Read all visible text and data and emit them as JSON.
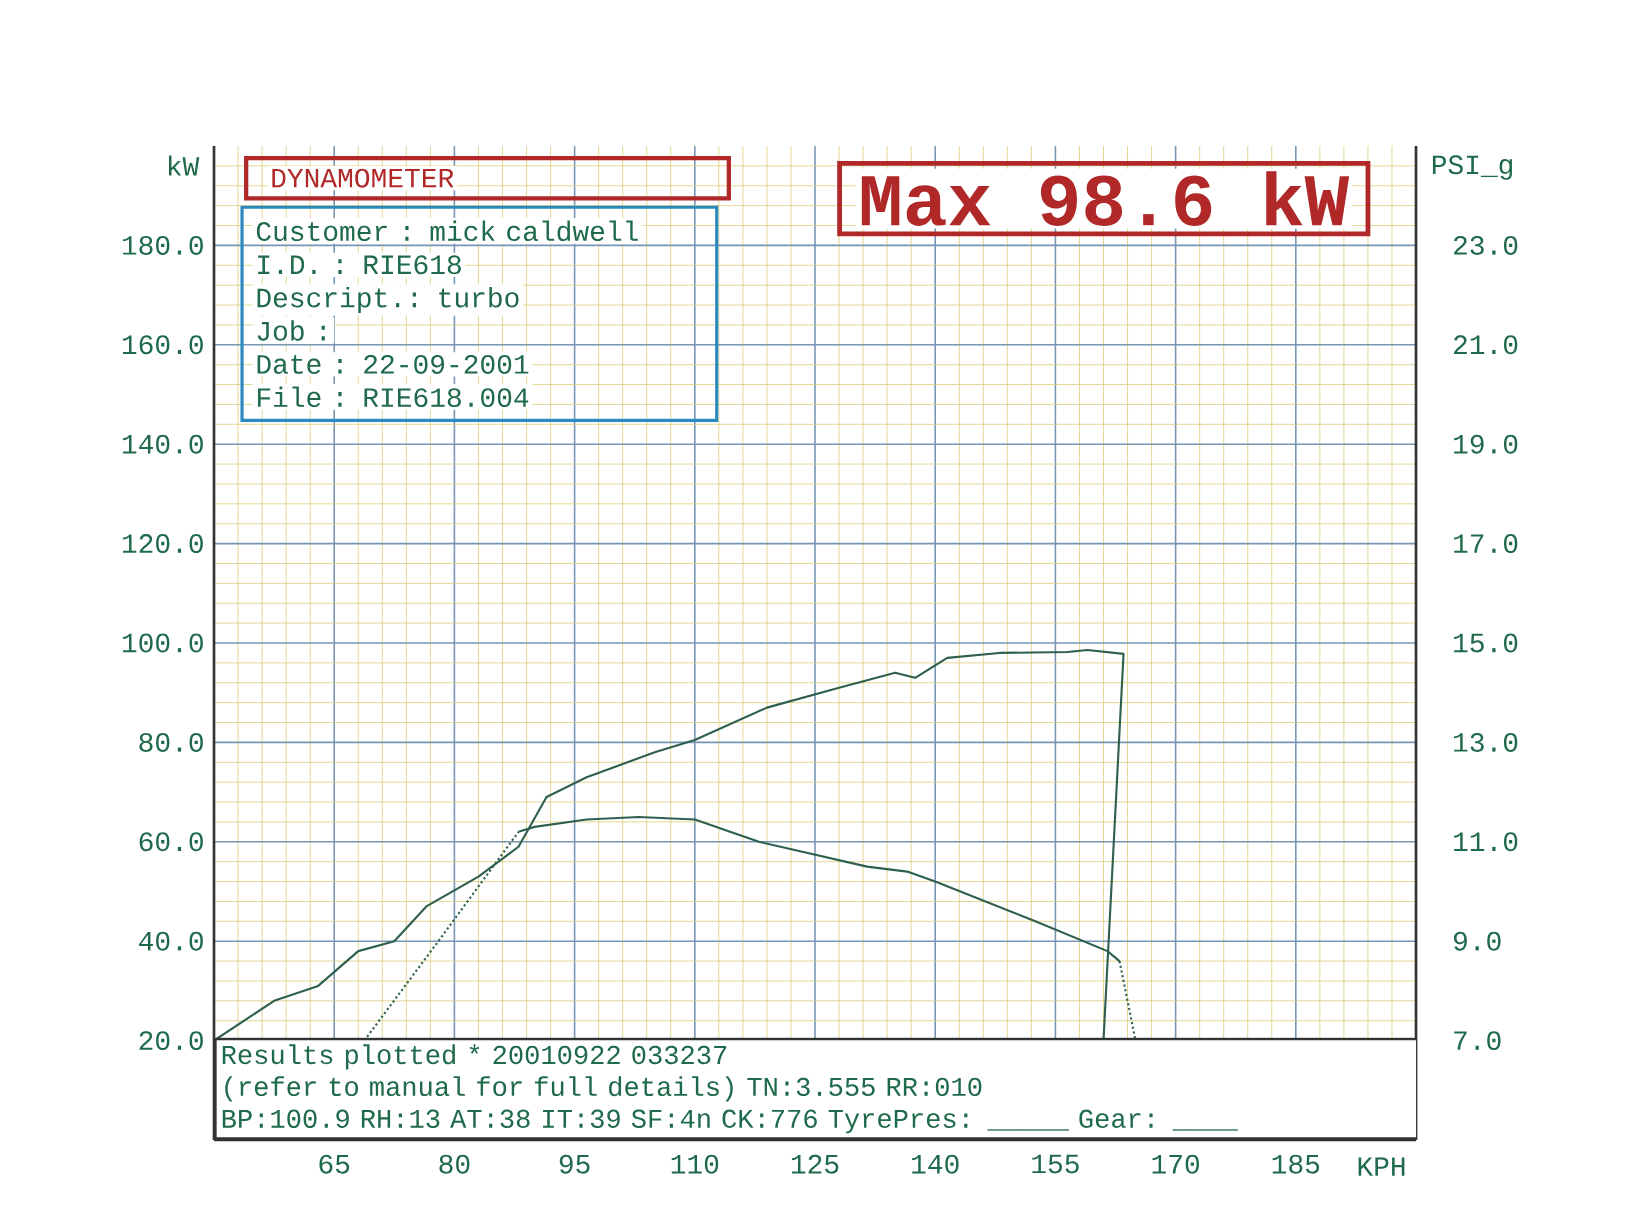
{
  "chart_data": {
    "type": "line",
    "title": "DYNAMOMETER",
    "subtitle": "Max  98.6 kW",
    "xlabel": "KPH",
    "ylabel": "kW",
    "y2label": "PSI_g",
    "xlim": [
      50,
      200
    ],
    "xticks": [
      65,
      80,
      95,
      110,
      125,
      140,
      155,
      170,
      185,
      {
        "value": 53,
        "label": null
      },
      {
        "value": 56,
        "label": null
      },
      {
        "value": 59,
        "label": null
      },
      {
        "value": 62,
        "label": null
      },
      {
        "value": 68,
        "label": null
      },
      {
        "value": 71,
        "label": null
      },
      {
        "value": 74,
        "label": null
      },
      {
        "value": 77,
        "label": null
      },
      {
        "value": 83,
        "label": null
      },
      {
        "value": 86,
        "label": null
      },
      {
        "value": 89,
        "label": null
      },
      {
        "value": 92,
        "label": null
      },
      {
        "value": 98,
        "label": null
      },
      {
        "value": 101,
        "label": null
      },
      {
        "value": 104,
        "label": null
      },
      {
        "value": 107,
        "label": null
      },
      {
        "value": 113,
        "label": null
      },
      {
        "value": 116,
        "label": null
      },
      {
        "value": 119,
        "label": null
      },
      {
        "value": 122,
        "label": null
      },
      {
        "value": 128,
        "label": null
      },
      {
        "value": 131,
        "label": null
      },
      {
        "value": 134,
        "label": null
      },
      {
        "value": 137,
        "label": null
      },
      {
        "value": 143,
        "label": null
      },
      {
        "value": 146,
        "label": null
      },
      {
        "value": 149,
        "label": null
      },
      {
        "value": 152,
        "label": null
      },
      {
        "value": 158,
        "label": null
      },
      {
        "value": 161,
        "label": null
      },
      {
        "value": 164,
        "label": null
      },
      {
        "value": 167,
        "label": null
      },
      {
        "value": 173,
        "label": null
      },
      {
        "value": 176,
        "label": null
      },
      {
        "value": 179,
        "label": null
      },
      {
        "value": 182,
        "label": null
      },
      {
        "value": 188,
        "label": null
      },
      {
        "value": 191,
        "label": null
      },
      {
        "value": 194,
        "label": null
      },
      {
        "value": 197,
        "label": null
      }
    ],
    "ylim": [
      0,
      200
    ],
    "yticks": [
      {
        "value": 20,
        "label": "20.0"
      },
      {
        "value": 40,
        "label": "40.0"
      },
      {
        "value": 60,
        "label": "60.0"
      },
      {
        "value": 80,
        "label": "80.0"
      },
      {
        "value": 100,
        "label": "100.0"
      },
      {
        "value": 120,
        "label": "120.0"
      },
      {
        "value": 140,
        "label": "140.0"
      },
      {
        "value": 160,
        "label": "160.0"
      },
      {
        "value": 180,
        "label": "180.0"
      },
      {
        "value": 4,
        "label": null
      },
      {
        "value": 8,
        "label": null
      },
      {
        "value": 12,
        "label": null
      },
      {
        "value": 16,
        "label": null
      },
      {
        "value": 24,
        "label": null
      },
      {
        "value": 28,
        "label": null
      },
      {
        "value": 32,
        "label": null
      },
      {
        "value": 36,
        "label": null
      },
      {
        "value": 44,
        "label": null
      },
      {
        "value": 48,
        "label": null
      },
      {
        "value": 52,
        "label": null
      },
      {
        "value": 56,
        "label": null
      },
      {
        "value": 64,
        "label": null
      },
      {
        "value": 68,
        "label": null
      },
      {
        "value": 72,
        "label": null
      },
      {
        "value": 76,
        "label": null
      },
      {
        "value": 84,
        "label": null
      },
      {
        "value": 88,
        "label": null
      },
      {
        "value": 92,
        "label": null
      },
      {
        "value": 96,
        "label": null
      },
      {
        "value": 104,
        "label": null
      },
      {
        "value": 108,
        "label": null
      },
      {
        "value": 112,
        "label": null
      },
      {
        "value": 116,
        "label": null
      },
      {
        "value": 124,
        "label": null
      },
      {
        "value": 128,
        "label": null
      },
      {
        "value": 132,
        "label": null
      },
      {
        "value": 136,
        "label": null
      },
      {
        "value": 144,
        "label": null
      },
      {
        "value": 148,
        "label": null
      },
      {
        "value": 152,
        "label": null
      },
      {
        "value": 156,
        "label": null
      },
      {
        "value": 164,
        "label": null
      },
      {
        "value": 168,
        "label": null
      },
      {
        "value": 172,
        "label": null
      },
      {
        "value": 176,
        "label": null
      },
      {
        "value": 184,
        "label": null
      },
      {
        "value": 188,
        "label": null
      },
      {
        "value": 192,
        "label": null
      },
      {
        "value": 196,
        "label": null
      }
    ],
    "y2lim": [
      5,
      25
    ],
    "y2ticks": [
      {
        "value": 7,
        "label": "7.0"
      },
      {
        "value": 9,
        "label": "9.0"
      },
      {
        "value": 11,
        "label": "11.0"
      },
      {
        "value": 13,
        "label": "13.0"
      },
      {
        "value": 15,
        "label": "15.0"
      },
      {
        "value": 17,
        "label": "17.0"
      },
      {
        "value": 19,
        "label": "19.0"
      },
      {
        "value": 21,
        "label": "21.0"
      },
      {
        "value": 23,
        "label": "23.0"
      }
    ],
    "grid": true,
    "series": [
      {
        "color": "#2f5f4f",
        "line_style": "solid",
        "x": [
          50,
          57.5,
          63,
          68,
          72.5,
          76.5,
          83,
          88,
          91.5,
          96.5,
          105,
          110,
          119,
          128,
          135,
          137.5,
          141.5,
          148,
          156.5,
          159,
          163.5,
          161
        ],
        "values": [
          20,
          28,
          31,
          38,
          40,
          47,
          53,
          59,
          69,
          73,
          78,
          80.5,
          87,
          91,
          94,
          93,
          97,
          98,
          98.2,
          98.6,
          97.8,
          20
        ]
      },
      {
        "color": "#2f5f4f",
        "axis": "y2",
        "line_style": "solid",
        "x": [
          88,
          90,
          96.5,
          103,
          110,
          118,
          131.5,
          136.5,
          140,
          152.5,
          161.5,
          163
        ],
        "values": [
          11.2,
          11.3,
          11.45,
          11.5,
          11.45,
          11.0,
          10.5,
          10.4,
          10.2,
          9.4,
          8.8,
          8.6
        ]
      },
      {
        "color": "#2f5f4f",
        "axis": "y2",
        "line_style": "dotted",
        "x": [
          68.75,
          78,
          88,
          125,
          163,
          165
        ],
        "values": [
          7.0,
          9.0,
          11.2,
          null,
          8.6,
          7.0
        ]
      }
    ],
    "annotations": [
      "Customer : mick caldwell",
      "I.D.     : RIE618",
      "Descript.: turbo",
      "Job      :",
      "Date     : 22-09-2001",
      "File     : RIE618.004",
      "Results plotted * 20010922 033237",
      "(refer to manual for full details) TN:3.555 RR:010",
      "BP:100.9 RH:13 AT:38 IT:39  SF:4n CK:776 TyrePres: _____ Gear: ____"
    ]
  }
}
